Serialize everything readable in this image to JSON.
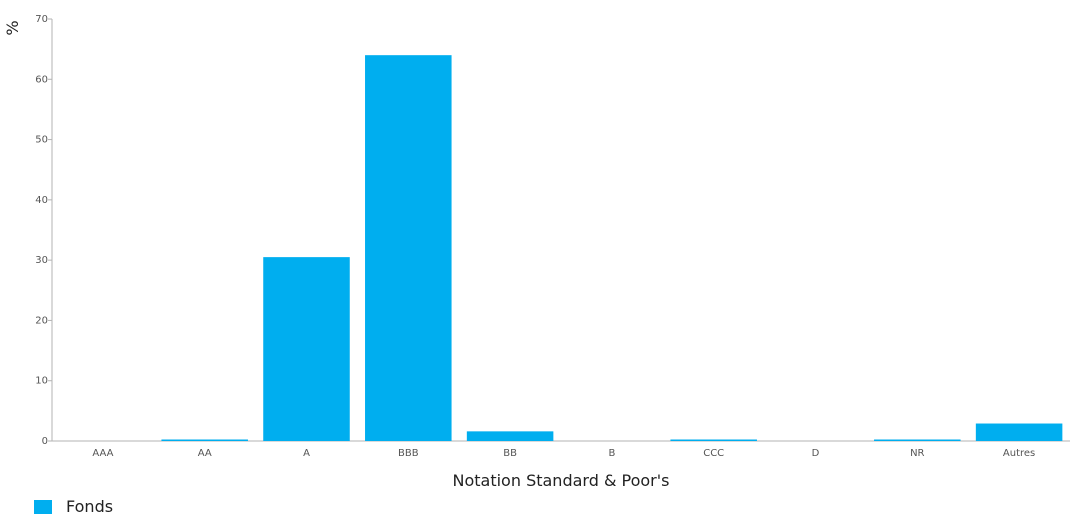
{
  "chart_data": {
    "type": "bar",
    "categories": [
      "AAA",
      "AA",
      "A",
      "BBB",
      "BB",
      "B",
      "CCC",
      "D",
      "NR",
      "Autres"
    ],
    "series": [
      {
        "name": "Fonds",
        "values": [
          0,
          0.2,
          30.5,
          64,
          1.6,
          0,
          0.2,
          0,
          0.2,
          2.9
        ]
      }
    ],
    "xlabel": "Notation Standard & Poor's",
    "ylabel": "%",
    "ylim": [
      0,
      70
    ],
    "yticks": [
      0,
      10,
      20,
      30,
      40,
      50,
      60,
      70
    ],
    "grid": false,
    "legend_placement": "bottom-left",
    "color": "#00aeef"
  }
}
